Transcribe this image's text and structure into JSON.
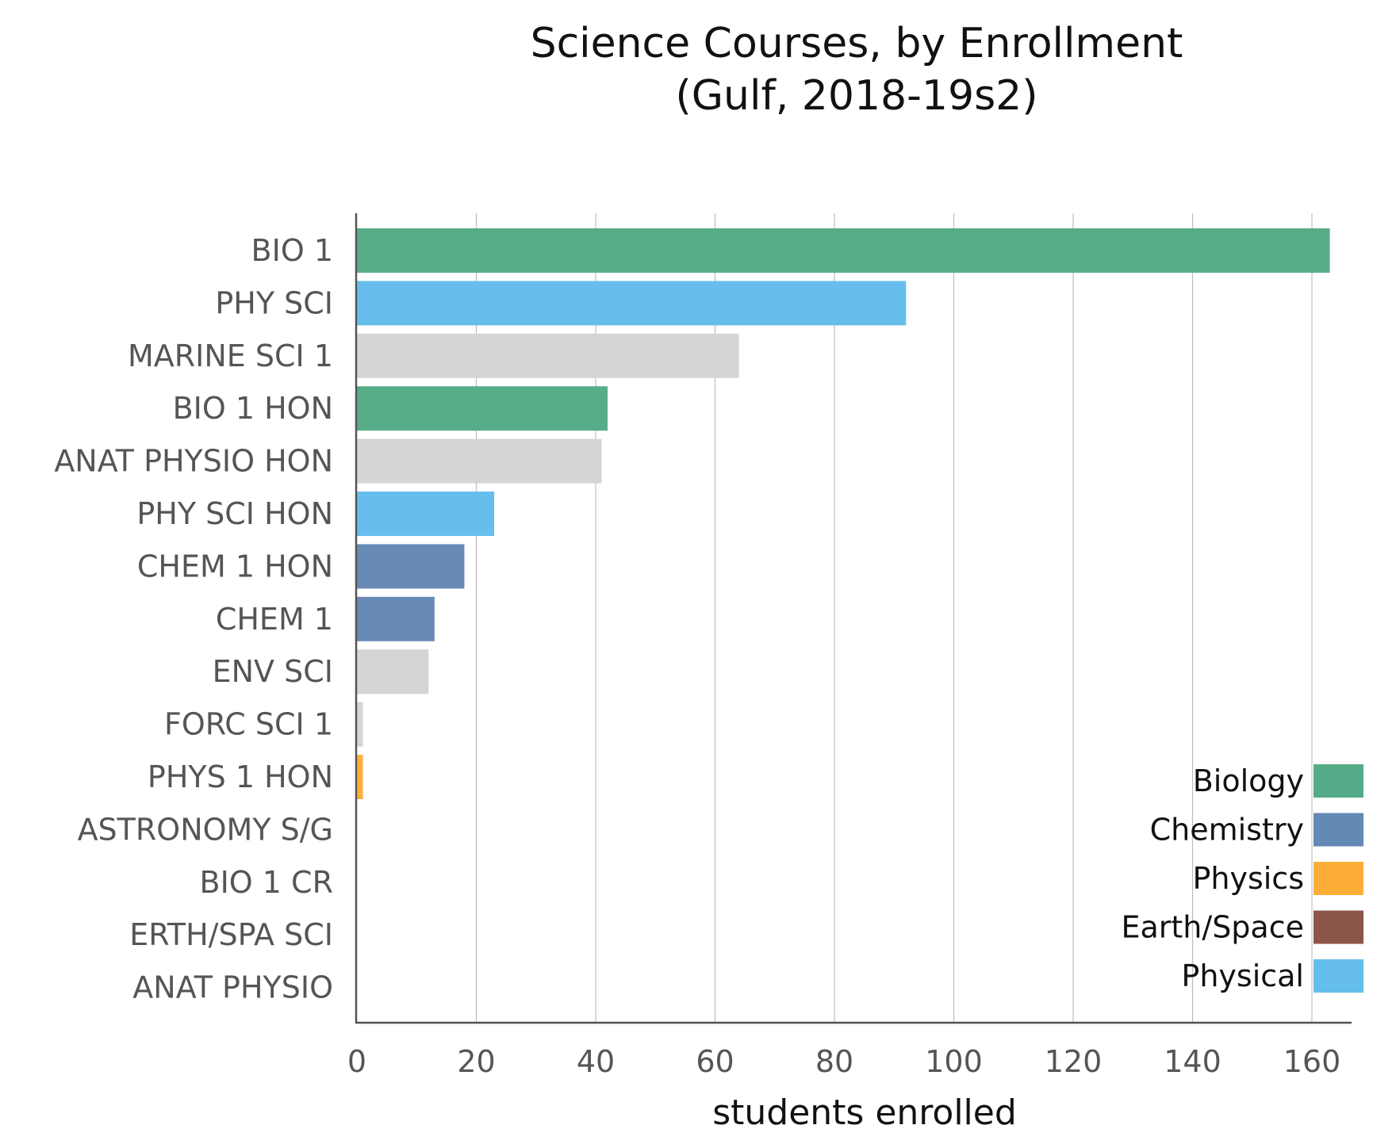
{
  "chart_data": {
    "type": "bar",
    "orientation": "horizontal",
    "title": [
      "Science Courses, by Enrollment",
      "(Gulf, 2018-19s2)"
    ],
    "xlabel": "students enrolled",
    "ylabel": "",
    "xlim": [
      0,
      170
    ],
    "xticks": [
      0,
      20,
      40,
      60,
      80,
      100,
      120,
      140,
      160
    ],
    "grid": "vertical",
    "legend_position": "bottom-right",
    "categories": [
      "BIO 1",
      "PHY SCI",
      "MARINE SCI 1",
      "BIO 1 HON",
      "ANAT PHYSIO HON",
      "PHY SCI HON",
      "CHEM 1 HON",
      "CHEM 1",
      "ENV SCI",
      "FORC SCI 1",
      "PHYS 1 HON",
      "ASTRONOMY S/G",
      "BIO 1 CR",
      "ERTH/SPA SCI",
      "ANAT PHYSIO"
    ],
    "values": [
      163,
      92,
      64,
      42,
      41,
      23,
      18,
      13,
      12,
      1,
      1,
      0,
      0,
      0,
      0
    ],
    "bar_groups": [
      "Biology",
      "Physical",
      "Other",
      "Biology",
      "Other",
      "Physical",
      "Chemistry",
      "Chemistry",
      "Other",
      "Other",
      "Physics",
      "Earth/Space",
      "Biology",
      "Earth/Space",
      "Other"
    ],
    "legend": [
      {
        "name": "Biology",
        "color": "#55ab87"
      },
      {
        "name": "Chemistry",
        "color": "#6589b5"
      },
      {
        "name": "Physics",
        "color": "#fdae38"
      },
      {
        "name": "Earth/Space",
        "color": "#8b5649"
      },
      {
        "name": "Physical",
        "color": "#64bdec"
      }
    ],
    "other_color": "#d4d4d4"
  }
}
